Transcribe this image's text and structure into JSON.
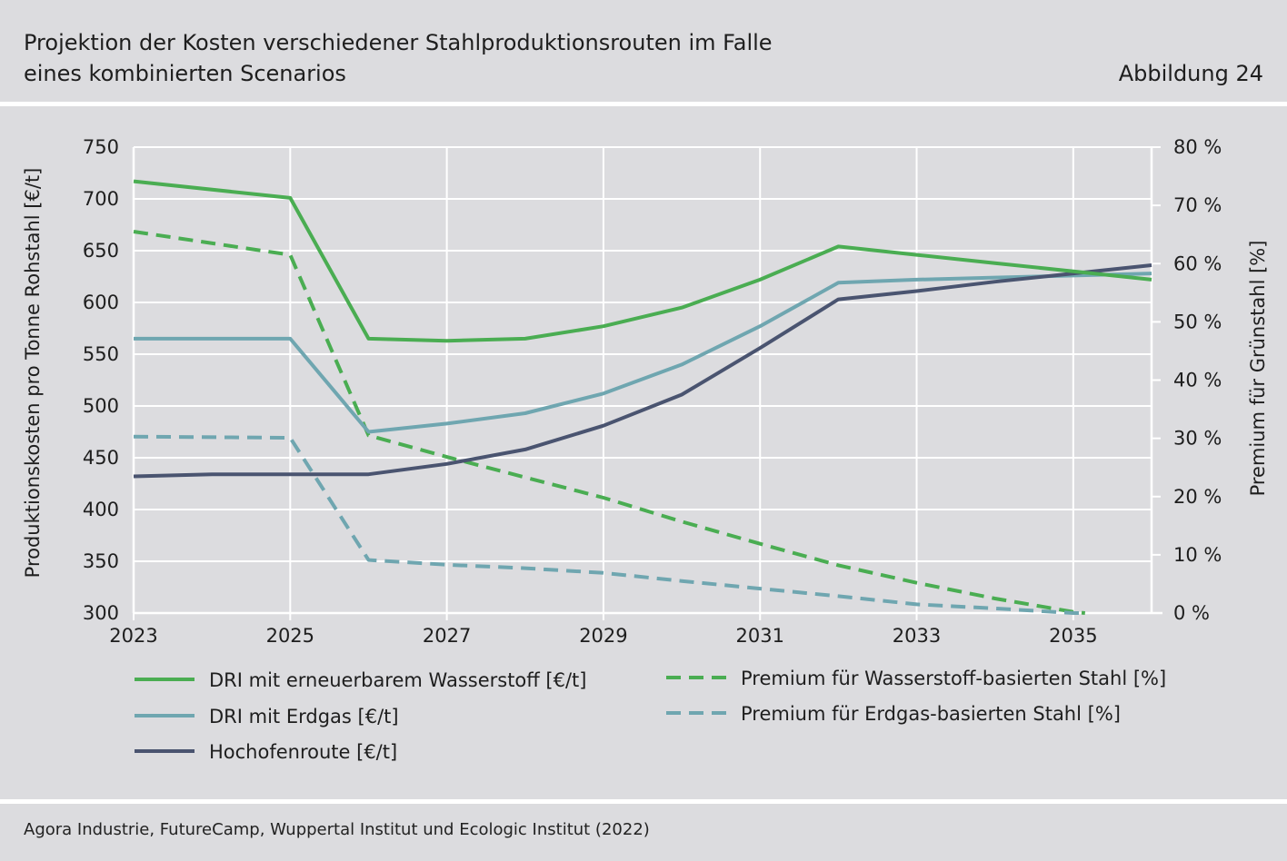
{
  "header": {
    "title_line1": "Projektion der Kosten verschiedener Stahlproduktionsrouten im Falle",
    "title_line2": "eines kombinierten Scenarios",
    "figure_label": "Abbildung 24"
  },
  "source": "Agora Industrie, FutureCamp, Wuppertal Institut und Ecologic Institut (2022)",
  "colors": {
    "h2_green": "#4aad52",
    "gas_teal": "#6fa6b0",
    "blast_navy": "#4a5470",
    "grid": "#ffffff"
  },
  "chart_data": {
    "type": "line",
    "xlim": [
      2023,
      2036
    ],
    "x_ticks": [
      2023,
      2025,
      2027,
      2029,
      2031,
      2033,
      2035
    ],
    "x_tick_labels": [
      "2023",
      "2025",
      "2027",
      "2029",
      "2031",
      "2033",
      "2035"
    ],
    "y_left": {
      "label": "Produktionskosten pro Tonne Rohstahl [€/t]",
      "lim": [
        300,
        750
      ],
      "ticks": [
        300,
        350,
        400,
        450,
        500,
        550,
        600,
        650,
        700,
        750
      ],
      "tick_labels": [
        "300",
        "350",
        "400",
        "450",
        "500",
        "550",
        "600",
        "650",
        "700",
        "750"
      ]
    },
    "y_right": {
      "label": "Premium für Grünstahl [%]",
      "lim": [
        0,
        80
      ],
      "ticks": [
        0,
        10,
        20,
        30,
        40,
        50,
        60,
        70,
        80
      ],
      "tick_labels": [
        "0 %",
        "10 %",
        "20 %",
        "30 %",
        "40 %",
        "50 %",
        "60 %",
        "70 %",
        "80 %"
      ]
    },
    "grid": true,
    "legend_position": "bottom",
    "series": [
      {
        "name": "DRI mit erneuerbarem Wasserstoff [€/t]",
        "axis": "left",
        "style": "solid",
        "color": "#4aad52",
        "x": [
          2023,
          2025,
          2026,
          2027,
          2028,
          2029,
          2030,
          2031,
          2032,
          2033,
          2034,
          2035,
          2036
        ],
        "y": [
          717,
          701,
          565,
          563,
          565,
          577,
          595,
          622,
          654,
          646,
          638,
          630,
          622
        ]
      },
      {
        "name": "DRI mit Erdgas [€/t]",
        "axis": "left",
        "style": "solid",
        "color": "#6fa6b0",
        "x": [
          2023,
          2025,
          2026,
          2027,
          2028,
          2029,
          2030,
          2031,
          2032,
          2033,
          2034,
          2035,
          2036
        ],
        "y": [
          565,
          565,
          475,
          483,
          493,
          512,
          540,
          577,
          619,
          622,
          624,
          626,
          628
        ]
      },
      {
        "name": "Hochofenroute [€/t]",
        "axis": "left",
        "style": "solid",
        "color": "#4a5470",
        "x": [
          2023,
          2024,
          2025,
          2026,
          2027,
          2028,
          2029,
          2030,
          2031,
          2032,
          2033,
          2034,
          2035,
          2036
        ],
        "y": [
          432,
          434,
          434,
          434,
          444,
          458,
          481,
          511,
          556,
          603,
          611,
          620,
          628,
          636
        ]
      },
      {
        "name": "Premium für Wasserstoff-basierten Stahl [%]",
        "axis": "right",
        "style": "dashed",
        "color": "#4aad52",
        "x": [
          2023,
          2025,
          2026,
          2027,
          2028,
          2029,
          2030,
          2031,
          2032,
          2033,
          2034,
          2035,
          2035.15
        ],
        "y": [
          65.5,
          61.5,
          30.5,
          26.8,
          23.3,
          19.8,
          15.7,
          11.9,
          8.2,
          5.2,
          2.5,
          0.2,
          0
        ]
      },
      {
        "name": "Premium für Erdgas-basierten Stahl [%]",
        "axis": "right",
        "style": "dashed",
        "color": "#6fa6b0",
        "x": [
          2023,
          2025,
          2026,
          2027,
          2028,
          2029,
          2030,
          2031,
          2032,
          2033,
          2034,
          2035,
          2035.1
        ],
        "y": [
          30.3,
          30.1,
          9.1,
          8.3,
          7.7,
          6.9,
          5.5,
          4.2,
          2.9,
          1.5,
          0.8,
          0,
          0
        ]
      }
    ]
  }
}
